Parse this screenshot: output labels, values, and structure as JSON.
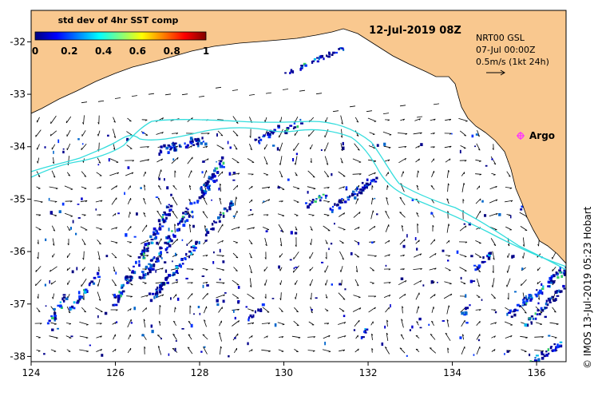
{
  "map": {
    "date_label": "12-Jul-2019 08Z",
    "credit": "© IMOS 13-Jul-2019 05:23 Hobart",
    "info_lines": [
      "NRT00 GSL",
      "07-Jul 00:00Z",
      "0.5m/s (1kt 24h)"
    ],
    "colors": {
      "land": "#f9c88f",
      "ocean": "#ffffff",
      "contour": "#33dddd",
      "marker": "#ff33ff",
      "arrow": "#000000"
    },
    "marker": {
      "label": "Argo",
      "lon": 135.5,
      "lat": -33.6
    },
    "icons": [
      "scale-arrow-icon",
      "argo-marker-icon"
    ]
  },
  "colorbar": {
    "title": "std dev of 4hr SST comp",
    "ticks": [
      "0",
      "0.2",
      "0.4",
      "0.6",
      "0.8",
      "1"
    ],
    "range": [
      0,
      1
    ],
    "colormap": [
      "#00007f",
      "#0000ff",
      "#0080ff",
      "#00ffff",
      "#80ff80",
      "#ffff00",
      "#ff8000",
      "#ff0000",
      "#7f0000"
    ]
  },
  "chart_data": {
    "type": "heatmap",
    "title": "std dev of 4hr SST comp",
    "x_ticks": [
      "124",
      "126",
      "128",
      "130",
      "132",
      "134",
      "136"
    ],
    "y_ticks": [
      "-32",
      "-33",
      "-34",
      "-35",
      "-36",
      "-37",
      "-38"
    ],
    "xlim": [
      124,
      136.7
    ],
    "ylim": [
      -38.1,
      -31.4
    ],
    "grid": false,
    "legend_placement": "top-left"
  }
}
